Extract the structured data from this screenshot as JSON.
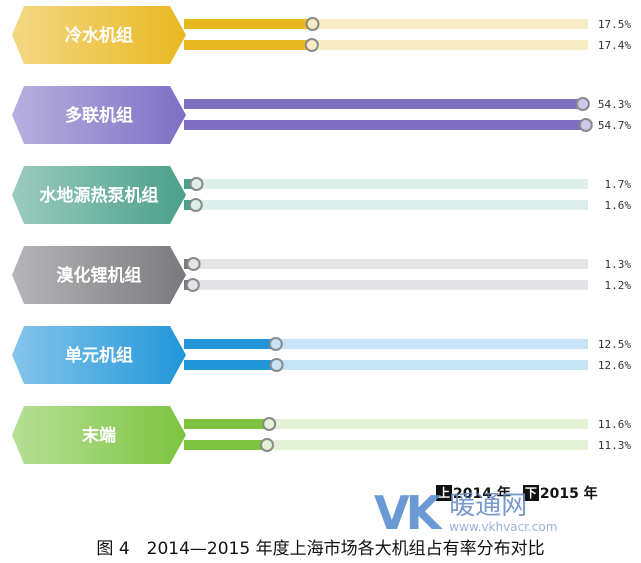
{
  "chart_data": {
    "type": "bar",
    "orientation": "horizontal",
    "categories": [
      "冷水机组",
      "多联机组",
      "水地源热泵机组",
      "溴化锂机组",
      "单元机组",
      "末端"
    ],
    "series": [
      {
        "name": "2014 年",
        "values": [
          17.5,
          54.3,
          1.7,
          1.3,
          12.5,
          11.6
        ]
      },
      {
        "name": "2015 年",
        "values": [
          17.4,
          54.7,
          1.6,
          1.2,
          12.6,
          11.3
        ]
      }
    ],
    "value_labels": [
      [
        "17.5%",
        "17.4%"
      ],
      [
        "54.3%",
        "54.7%"
      ],
      [
        "1.7%",
        "1.6%"
      ],
      [
        "1.3%",
        "1.2%"
      ],
      [
        "12.5%",
        "12.6%"
      ],
      [
        "11.6%",
        "11.3%"
      ]
    ],
    "colors": [
      "#e8b820",
      "#7e6fc4",
      "#4aa08a",
      "#7a7a7e",
      "#2196d8",
      "#7cc440"
    ],
    "light_colors": [
      "#f7ecc4",
      "#cfc8ea",
      "#dcefea",
      "#e4e4e6",
      "#c6e4f5",
      "#e3f1d4"
    ],
    "value_max": 55,
    "legend_placement": "bottom-right"
  },
  "legend": {
    "items": [
      {
        "marker": "上",
        "label": "2014 年"
      },
      {
        "marker": "下",
        "label": "2015 年"
      }
    ]
  },
  "watermark": {
    "logo": "VK",
    "name": "暖通网",
    "url": "www.vkhvacr.com"
  },
  "caption": "图 4　2014—2015 年度上海市场各大机组占有率分布对比"
}
